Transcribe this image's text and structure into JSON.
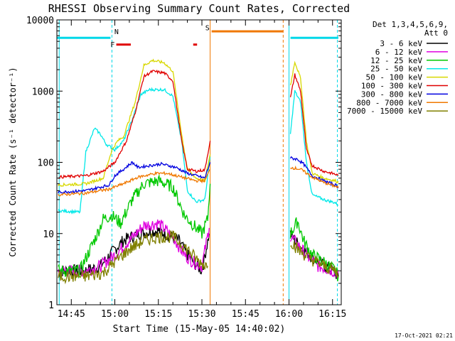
{
  "chart_data": {
    "type": "line",
    "title": "RHESSI Observing Summary Count Rates, Corrected",
    "xlabel": "Start Time (15-May-05 14:40:02)",
    "ylabel": "Corrected Count Rate (s⁻¹ detector⁻¹)",
    "y_scale": "log",
    "ylim": [
      1,
      10000
    ],
    "xlim": [
      "14:40:02",
      "16:18:00"
    ],
    "x_ticks": [
      "14:45",
      "15:00",
      "15:15",
      "15:30",
      "15:45",
      "16:00",
      "16:15"
    ],
    "y_ticks": [
      "1",
      "10",
      "100",
      "1000",
      "10000"
    ],
    "legend_position": "top-right",
    "legend_header": [
      "Det 1,3,4,5,6,9,",
      "Att 0"
    ],
    "timestamp": "17-Oct-2021 02:21",
    "flag_labels": {
      "N": "N",
      "F": "F",
      "S": "S"
    },
    "colors": {
      "frame": "#000000",
      "night": "#00d8e8",
      "flare": "#e00000",
      "saa": "#f07800"
    },
    "segments": [
      {
        "name": "night",
        "color": "#00d8e8",
        "y": 5600,
        "t": [
          [
            "14:40:02",
            "14:58:30"
          ],
          [
            "16:00:30",
            "16:17:00"
          ]
        ]
      },
      {
        "name": "flare",
        "color": "#e00000",
        "y": 4500,
        "t": [
          [
            "15:00:30",
            "15:05:30"
          ],
          [
            "15:27:00",
            "15:28:20"
          ]
        ]
      },
      {
        "name": "saa",
        "color": "#f07800",
        "y": 6900,
        "t": [
          [
            "15:33:20",
            "15:58:00"
          ]
        ]
      }
    ],
    "vertical_lines": [
      {
        "t": "14:40:50",
        "color": "#00d8e8",
        "style": "solid"
      },
      {
        "t": "14:59:00",
        "color": "#00d8e8",
        "style": "dashed"
      },
      {
        "t": "15:32:50",
        "color": "#f07800",
        "style": "solid"
      },
      {
        "t": "15:58:00",
        "color": "#f07800",
        "style": "dashed"
      },
      {
        "t": "16:00:00",
        "color": "#00d8e8",
        "style": "solid"
      },
      {
        "t": "16:16:40",
        "color": "#00d8e8",
        "style": "dashed"
      }
    ],
    "series": [
      {
        "name": "3 - 6 keV",
        "color": "#000000",
        "segments": [
          [
            [
              "14:40:30",
              3
            ],
            [
              "14:50:00",
              3
            ],
            [
              "14:55:00",
              3.5
            ],
            [
              "15:00:00",
              6
            ],
            [
              "15:03:00",
              8
            ],
            [
              "15:08:00",
              10
            ],
            [
              "15:15:00",
              11
            ],
            [
              "15:22:00",
              8
            ],
            [
              "15:25:00",
              5
            ],
            [
              "15:27:00",
              4
            ],
            [
              "15:30:00",
              3
            ],
            [
              "15:32:30",
              10
            ]
          ],
          [
            [
              "16:00:30",
              10
            ],
            [
              "16:02:00",
              8
            ],
            [
              "16:05:00",
              6
            ],
            [
              "16:10:00",
              4
            ],
            [
              "16:15:00",
              3
            ],
            [
              "16:17:00",
              2.5
            ]
          ]
        ]
      },
      {
        "name": "6 - 12 keV",
        "color": "#e000e0",
        "segments": [
          [
            [
              "14:40:30",
              3
            ],
            [
              "14:50:00",
              3
            ],
            [
              "14:55:00",
              3.5
            ],
            [
              "15:00:00",
              5
            ],
            [
              "15:05:00",
              8
            ],
            [
              "15:10:00",
              13
            ],
            [
              "15:15:00",
              14
            ],
            [
              "15:20:00",
              9
            ],
            [
              "15:24:00",
              5
            ],
            [
              "15:27:00",
              4
            ],
            [
              "15:30:00",
              3.5
            ],
            [
              "15:32:30",
              12
            ]
          ],
          [
            [
              "16:00:30",
              9
            ],
            [
              "16:03:00",
              7
            ],
            [
              "16:06:00",
              5
            ],
            [
              "16:10:00",
              3.5
            ],
            [
              "16:15:00",
              3
            ],
            [
              "16:17:00",
              2.8
            ]
          ]
        ]
      },
      {
        "name": "12 - 25 keV",
        "color": "#00c800",
        "segments": [
          [
            [
              "14:40:30",
              3
            ],
            [
              "14:48:00",
              3
            ],
            [
              "14:54:00",
              10
            ],
            [
              "14:56:00",
              16
            ],
            [
              "14:59:00",
              18
            ],
            [
              "15:02:00",
              14
            ],
            [
              "15:06:00",
              30
            ],
            [
              "15:10:00",
              50
            ],
            [
              "15:15:00",
              55
            ],
            [
              "15:20:00",
              45
            ],
            [
              "15:24:00",
              18
            ],
            [
              "15:28:00",
              12
            ],
            [
              "15:30:00",
              10
            ],
            [
              "15:32:00",
              16
            ],
            [
              "15:32:50",
              50
            ]
          ],
          [
            [
              "16:00:30",
              10
            ],
            [
              "16:03:00",
              15
            ],
            [
              "16:05:00",
              8
            ],
            [
              "16:08:00",
              5
            ],
            [
              "16:12:00",
              4
            ],
            [
              "16:16:00",
              3
            ],
            [
              "16:17:00",
              2.5
            ]
          ]
        ]
      },
      {
        "name": "25 - 50 keV",
        "color": "#00e8e8",
        "segments": [
          [
            [
              "14:40:30",
              21
            ],
            [
              "14:48:00",
              20
            ],
            [
              "14:50:00",
              140
            ],
            [
              "14:53:00",
              300
            ],
            [
              "14:55:00",
              250
            ],
            [
              "14:57:00",
              180
            ],
            [
              "15:00:00",
              150
            ],
            [
              "15:03:00",
              200
            ],
            [
              "15:06:00",
              400
            ],
            [
              "15:09:00",
              900
            ],
            [
              "15:12:00",
              1050
            ],
            [
              "15:17:00",
              1050
            ],
            [
              "15:20:00",
              850
            ],
            [
              "15:23:00",
              200
            ],
            [
              "15:25:00",
              40
            ],
            [
              "15:28:00",
              28
            ],
            [
              "15:31:00",
              30
            ],
            [
              "15:32:50",
              120
            ]
          ],
          [
            [
              "16:00:30",
              250
            ],
            [
              "16:02:00",
              1000
            ],
            [
              "16:04:00",
              700
            ],
            [
              "16:06:00",
              100
            ],
            [
              "16:08:00",
              35
            ],
            [
              "16:12:00",
              30
            ],
            [
              "16:16:00",
              27
            ],
            [
              "16:17:00",
              25
            ]
          ]
        ]
      },
      {
        "name": "50 - 100 keV",
        "color": "#d8d800",
        "segments": [
          [
            [
              "14:40:30",
              48
            ],
            [
              "14:50:00",
              50
            ],
            [
              "14:56:00",
              60
            ],
            [
              "14:59:00",
              150
            ],
            [
              "15:01:00",
              200
            ],
            [
              "15:03:00",
              230
            ],
            [
              "15:07:00",
              700
            ],
            [
              "15:10:00",
              2300
            ],
            [
              "15:13:00",
              2700
            ],
            [
              "15:17:00",
              2500
            ],
            [
              "15:20:00",
              1900
            ],
            [
              "15:23:00",
              250
            ],
            [
              "15:25:00",
              80
            ],
            [
              "15:28:00",
              60
            ],
            [
              "15:31:00",
              55
            ],
            [
              "15:32:50",
              130
            ]
          ],
          [
            [
              "16:00:30",
              1200
            ],
            [
              "16:02:00",
              2600
            ],
            [
              "16:04:00",
              1500
            ],
            [
              "16:06:00",
              200
            ],
            [
              "16:08:00",
              70
            ],
            [
              "16:12:00",
              60
            ],
            [
              "16:16:00",
              55
            ],
            [
              "16:17:00",
              52
            ]
          ]
        ]
      },
      {
        "name": "100 - 300 keV",
        "color": "#e00000",
        "segments": [
          [
            [
              "14:40:30",
              62
            ],
            [
              "14:50:00",
              65
            ],
            [
              "14:56:00",
              75
            ],
            [
              "15:00:00",
              100
            ],
            [
              "15:04:00",
              200
            ],
            [
              "15:07:00",
              500
            ],
            [
              "15:10:00",
              1600
            ],
            [
              "15:13:00",
              1900
            ],
            [
              "15:17:00",
              1800
            ],
            [
              "15:20:00",
              1400
            ],
            [
              "15:23:00",
              200
            ],
            [
              "15:25:00",
              80
            ],
            [
              "15:28:00",
              75
            ],
            [
              "15:31:00",
              78
            ],
            [
              "15:32:50",
              200
            ]
          ],
          [
            [
              "16:00:30",
              800
            ],
            [
              "16:02:00",
              1700
            ],
            [
              "16:04:00",
              1000
            ],
            [
              "16:06:00",
              150
            ],
            [
              "16:08:00",
              90
            ],
            [
              "16:12:00",
              75
            ],
            [
              "16:16:00",
              68
            ],
            [
              "16:17:00",
              65
            ]
          ]
        ]
      },
      {
        "name": "300 - 800 keV",
        "color": "#0000e0",
        "segments": [
          [
            [
              "14:40:30",
              38
            ],
            [
              "14:50:00",
              40
            ],
            [
              "14:58:00",
              48
            ],
            [
              "15:00:00",
              65
            ],
            [
              "15:03:00",
              80
            ],
            [
              "15:06:00",
              100
            ],
            [
              "15:08:00",
              85
            ],
            [
              "15:12:00",
              90
            ],
            [
              "15:16:00",
              95
            ],
            [
              "15:21:00",
              85
            ],
            [
              "15:25:00",
              70
            ],
            [
              "15:28:00",
              65
            ],
            [
              "15:31:00",
              60
            ],
            [
              "15:32:50",
              100
            ]
          ],
          [
            [
              "16:00:30",
              115
            ],
            [
              "16:03:00",
              110
            ],
            [
              "16:05:00",
              95
            ],
            [
              "16:08:00",
              65
            ],
            [
              "16:12:00",
              55
            ],
            [
              "16:16:00",
              48
            ],
            [
              "16:17:00",
              45
            ]
          ]
        ]
      },
      {
        "name": "800 - 7000 keV",
        "color": "#f07800",
        "segments": [
          [
            [
              "14:40:30",
              35
            ],
            [
              "14:50:00",
              37
            ],
            [
              "14:58:00",
              42
            ],
            [
              "15:03:00",
              50
            ],
            [
              "15:08:00",
              62
            ],
            [
              "15:14:00",
              70
            ],
            [
              "15:18:00",
              70
            ],
            [
              "15:23:00",
              62
            ],
            [
              "15:28:00",
              55
            ],
            [
              "15:31:00",
              55
            ],
            [
              "15:32:50",
              80
            ]
          ],
          [
            [
              "16:00:30",
              85
            ],
            [
              "16:04:00",
              80
            ],
            [
              "16:08:00",
              62
            ],
            [
              "16:12:00",
              52
            ],
            [
              "16:16:00",
              46
            ],
            [
              "16:17:00",
              44
            ]
          ]
        ]
      },
      {
        "name": "7000 - 15000 keV",
        "color": "#808000",
        "segments": [
          [
            [
              "14:40:30",
              2.5
            ],
            [
              "14:50:00",
              2.5
            ],
            [
              "14:56:00",
              2.8
            ],
            [
              "15:00:00",
              4
            ],
            [
              "15:05:00",
              6
            ],
            [
              "15:10:00",
              8
            ],
            [
              "15:15:00",
              9
            ],
            [
              "15:20:00",
              9
            ],
            [
              "15:25:00",
              6
            ],
            [
              "15:29:00",
              4
            ],
            [
              "15:32:00",
              3.5
            ]
          ],
          [
            [
              "16:00:30",
              8
            ],
            [
              "16:03:00",
              6
            ],
            [
              "16:07:00",
              4.5
            ],
            [
              "16:12:00",
              3.5
            ],
            [
              "16:16:00",
              3
            ],
            [
              "16:17:00",
              2.5
            ]
          ]
        ]
      }
    ]
  }
}
